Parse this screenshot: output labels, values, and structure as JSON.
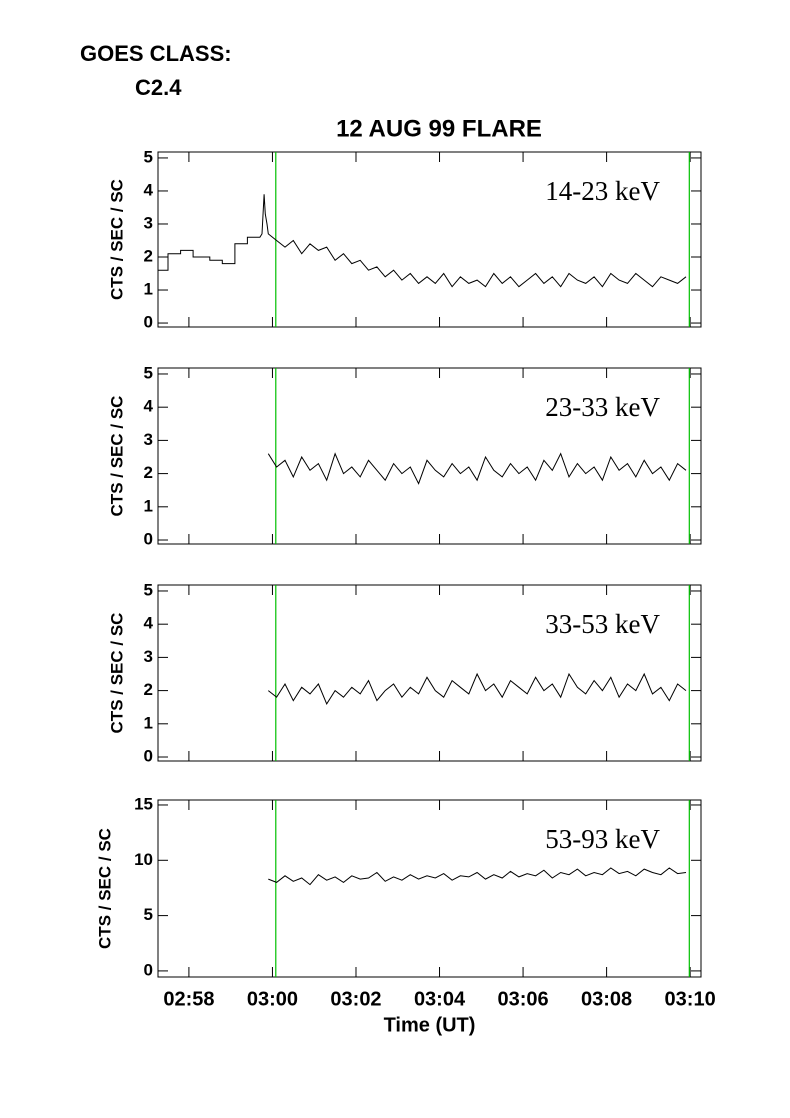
{
  "header": {
    "goes_label": "GOES CLASS:",
    "goes_class": "C2.4",
    "title": "12 AUG 99 FLARE"
  },
  "markers": {
    "x": [
      180.08,
      189.98
    ],
    "color": "#00c000"
  },
  "chart_data": [
    {
      "type": "line",
      "label": "14-23 keV",
      "ylabel": "CTS / SEC / SC",
      "color": "#000000",
      "ylim": [
        -0.12,
        5.18
      ],
      "yticks": [
        0,
        1,
        2,
        3,
        4,
        5
      ],
      "x": [
        177.26,
        177.5,
        177.5,
        177.8,
        177.8,
        178.1,
        178.1,
        178.5,
        178.5,
        178.8,
        178.8,
        179.1,
        179.1,
        179.4,
        179.4,
        179.7,
        179.75,
        179.8,
        179.83,
        179.87,
        179.9,
        180.1,
        180.3,
        180.5,
        180.7,
        180.9,
        181.1,
        181.3,
        181.5,
        181.7,
        181.9,
        182.1,
        182.3,
        182.5,
        182.7,
        182.9,
        183.1,
        183.3,
        183.5,
        183.7,
        183.9,
        184.1,
        184.3,
        184.5,
        184.7,
        184.9,
        185.1,
        185.3,
        185.5,
        185.7,
        185.9,
        186.1,
        186.3,
        186.5,
        186.7,
        186.9,
        187.1,
        187.3,
        187.5,
        187.7,
        187.9,
        188.1,
        188.3,
        188.5,
        188.7,
        188.9,
        189.1,
        189.3,
        189.5,
        189.7,
        189.9
      ],
      "values": [
        1.6,
        1.6,
        2.1,
        2.1,
        2.2,
        2.2,
        2.0,
        2.0,
        1.9,
        1.9,
        1.8,
        1.8,
        2.4,
        2.4,
        2.6,
        2.6,
        2.7,
        3.9,
        3.3,
        3.0,
        2.7,
        2.5,
        2.3,
        2.5,
        2.1,
        2.4,
        2.2,
        2.3,
        1.9,
        2.1,
        1.8,
        1.9,
        1.6,
        1.7,
        1.4,
        1.6,
        1.3,
        1.5,
        1.2,
        1.4,
        1.2,
        1.5,
        1.1,
        1.4,
        1.2,
        1.3,
        1.1,
        1.5,
        1.2,
        1.4,
        1.1,
        1.3,
        1.5,
        1.2,
        1.4,
        1.1,
        1.5,
        1.3,
        1.2,
        1.4,
        1.1,
        1.5,
        1.3,
        1.2,
        1.5,
        1.3,
        1.1,
        1.4,
        1.3,
        1.2,
        1.4
      ]
    },
    {
      "type": "line",
      "label": "23-33 keV",
      "ylabel": "CTS / SEC / SC",
      "color": "#000000",
      "ylim": [
        -0.12,
        5.18
      ],
      "yticks": [
        0,
        1,
        2,
        3,
        4,
        5
      ],
      "x": [
        179.9,
        180.1,
        180.3,
        180.5,
        180.7,
        180.9,
        181.1,
        181.3,
        181.5,
        181.7,
        181.9,
        182.1,
        182.3,
        182.5,
        182.7,
        182.9,
        183.1,
        183.3,
        183.5,
        183.7,
        183.9,
        184.1,
        184.3,
        184.5,
        184.7,
        184.9,
        185.1,
        185.3,
        185.5,
        185.7,
        185.9,
        186.1,
        186.3,
        186.5,
        186.7,
        186.9,
        187.1,
        187.3,
        187.5,
        187.7,
        187.9,
        188.1,
        188.3,
        188.5,
        188.7,
        188.9,
        189.1,
        189.3,
        189.5,
        189.7,
        189.9
      ],
      "values": [
        2.6,
        2.2,
        2.4,
        1.9,
        2.5,
        2.1,
        2.3,
        1.8,
        2.6,
        2.0,
        2.2,
        1.9,
        2.4,
        2.1,
        1.8,
        2.3,
        2.0,
        2.2,
        1.7,
        2.4,
        2.1,
        1.9,
        2.3,
        2.0,
        2.2,
        1.8,
        2.5,
        2.1,
        1.9,
        2.3,
        2.0,
        2.2,
        1.8,
        2.4,
        2.1,
        2.6,
        1.9,
        2.3,
        2.0,
        2.2,
        1.8,
        2.5,
        2.1,
        2.3,
        1.9,
        2.4,
        2.0,
        2.2,
        1.8,
        2.3,
        2.1
      ]
    },
    {
      "type": "line",
      "label": "33-53 keV",
      "ylabel": "CTS / SEC / SC",
      "color": "#000000",
      "ylim": [
        -0.12,
        5.18
      ],
      "yticks": [
        0,
        1,
        2,
        3,
        4,
        5
      ],
      "x": [
        179.9,
        180.1,
        180.3,
        180.5,
        180.7,
        180.9,
        181.1,
        181.3,
        181.5,
        181.7,
        181.9,
        182.1,
        182.3,
        182.5,
        182.7,
        182.9,
        183.1,
        183.3,
        183.5,
        183.7,
        183.9,
        184.1,
        184.3,
        184.5,
        184.7,
        184.9,
        185.1,
        185.3,
        185.5,
        185.7,
        185.9,
        186.1,
        186.3,
        186.5,
        186.7,
        186.9,
        187.1,
        187.3,
        187.5,
        187.7,
        187.9,
        188.1,
        188.3,
        188.5,
        188.7,
        188.9,
        189.1,
        189.3,
        189.5,
        189.7,
        189.9
      ],
      "values": [
        2.0,
        1.8,
        2.2,
        1.7,
        2.1,
        1.9,
        2.2,
        1.6,
        2.0,
        1.8,
        2.1,
        1.9,
        2.3,
        1.7,
        2.0,
        2.2,
        1.8,
        2.1,
        1.9,
        2.4,
        2.0,
        1.8,
        2.3,
        2.1,
        1.9,
        2.5,
        2.0,
        2.2,
        1.8,
        2.3,
        2.1,
        1.9,
        2.4,
        2.0,
        2.2,
        1.8,
        2.5,
        2.1,
        1.9,
        2.3,
        2.0,
        2.4,
        1.8,
        2.2,
        2.0,
        2.5,
        1.9,
        2.1,
        1.7,
        2.2,
        2.0
      ]
    },
    {
      "type": "line",
      "label": "53-93 keV",
      "ylabel": "CTS / SEC / SC",
      "color": "#000000",
      "ylim": [
        -0.55,
        15.45
      ],
      "yticks": [
        0,
        5,
        10,
        15
      ],
      "xlabel": "Time (UT)",
      "xlim": [
        177.26,
        190.26
      ],
      "xticks": [
        {
          "value": 178,
          "label": "02:58"
        },
        {
          "value": 180,
          "label": "03:00"
        },
        {
          "value": 182,
          "label": "03:02"
        },
        {
          "value": 184,
          "label": "03:04"
        },
        {
          "value": 186,
          "label": "03:06"
        },
        {
          "value": 188,
          "label": "03:08"
        },
        {
          "value": 190,
          "label": "03:10"
        }
      ],
      "x": [
        179.9,
        180.1,
        180.3,
        180.5,
        180.7,
        180.9,
        181.1,
        181.3,
        181.5,
        181.7,
        181.9,
        182.1,
        182.3,
        182.5,
        182.7,
        182.9,
        183.1,
        183.3,
        183.5,
        183.7,
        183.9,
        184.1,
        184.3,
        184.5,
        184.7,
        184.9,
        185.1,
        185.3,
        185.5,
        185.7,
        185.9,
        186.1,
        186.3,
        186.5,
        186.7,
        186.9,
        187.1,
        187.3,
        187.5,
        187.7,
        187.9,
        188.1,
        188.3,
        188.5,
        188.7,
        188.9,
        189.1,
        189.3,
        189.5,
        189.7,
        189.9
      ],
      "values": [
        8.3,
        8.0,
        8.6,
        8.1,
        8.4,
        7.8,
        8.7,
        8.2,
        8.5,
        8.0,
        8.6,
        8.3,
        8.4,
        8.9,
        8.1,
        8.5,
        8.2,
        8.7,
        8.3,
        8.6,
        8.4,
        8.8,
        8.2,
        8.6,
        8.5,
        8.9,
        8.3,
        8.7,
        8.4,
        9.0,
        8.5,
        8.8,
        8.6,
        9.1,
        8.4,
        8.9,
        8.7,
        9.2,
        8.6,
        8.9,
        8.7,
        9.3,
        8.8,
        9.0,
        8.6,
        9.2,
        8.9,
        8.7,
        9.3,
        8.8,
        8.9
      ]
    }
  ]
}
